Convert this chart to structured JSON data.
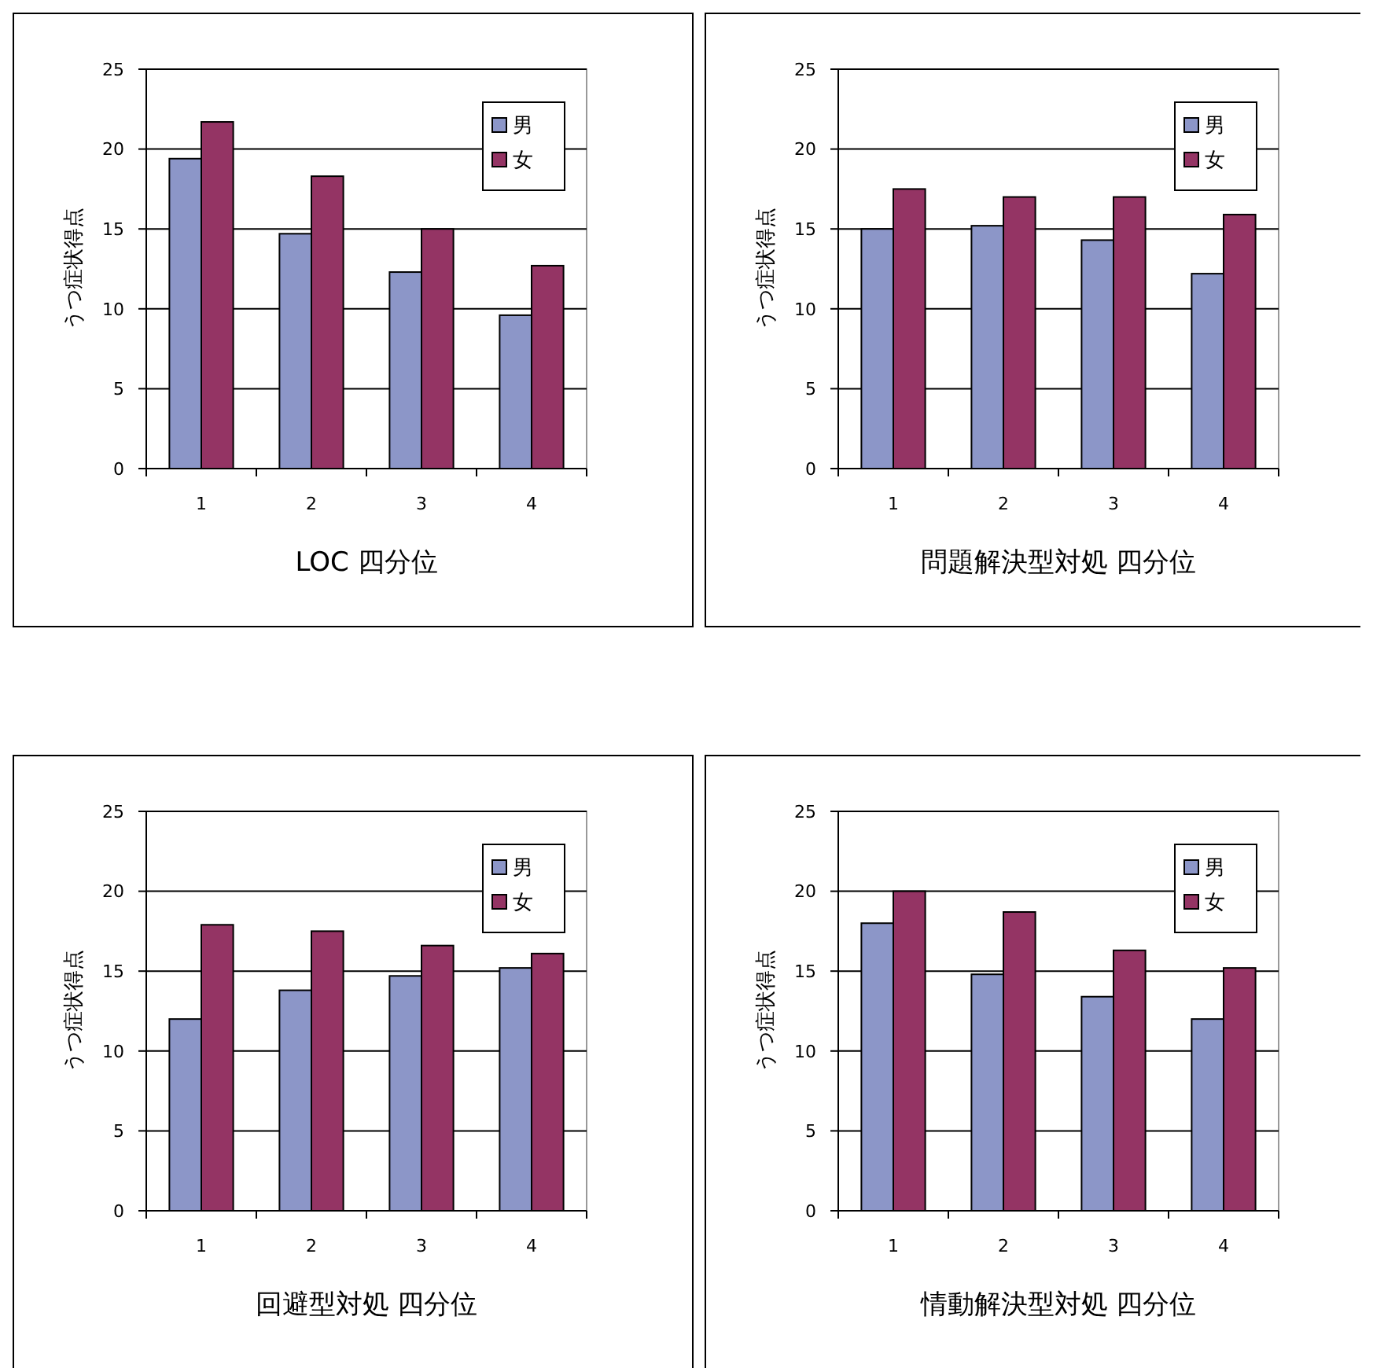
{
  "chart_data": [
    {
      "type": "bar",
      "xlabel": "LOC 四分位",
      "ylabel": "うつ症状得点",
      "categories": [
        "1",
        "2",
        "3",
        "4"
      ],
      "series": [
        {
          "name": "男",
          "color": "#8c96c8",
          "values": [
            19.4,
            14.7,
            12.3,
            9.6
          ]
        },
        {
          "name": "女",
          "color": "#943464",
          "values": [
            21.7,
            18.3,
            15.0,
            12.7
          ]
        }
      ],
      "ylim": [
        0,
        25
      ],
      "yticks": [
        0,
        5,
        10,
        15,
        20,
        25
      ],
      "grid": "y",
      "legend": "top right"
    },
    {
      "type": "bar",
      "xlabel": "問題解決型対処 四分位",
      "ylabel": "うつ症状得点",
      "categories": [
        "1",
        "2",
        "3",
        "4"
      ],
      "series": [
        {
          "name": "男",
          "color": "#8c96c8",
          "values": [
            15.0,
            15.2,
            14.3,
            12.2
          ]
        },
        {
          "name": "女",
          "color": "#943464",
          "values": [
            17.5,
            17.0,
            17.0,
            15.9
          ]
        }
      ],
      "ylim": [
        0,
        25
      ],
      "yticks": [
        0,
        5,
        10,
        15,
        20,
        25
      ],
      "grid": "y",
      "legend": "top right"
    },
    {
      "type": "bar",
      "xlabel": "回避型対処 四分位",
      "ylabel": "うつ症状得点",
      "categories": [
        "1",
        "2",
        "3",
        "4"
      ],
      "series": [
        {
          "name": "男",
          "color": "#8c96c8",
          "values": [
            12.0,
            13.8,
            14.7,
            15.2
          ]
        },
        {
          "name": "女",
          "color": "#943464",
          "values": [
            17.9,
            17.5,
            16.6,
            16.1
          ]
        }
      ],
      "ylim": [
        0,
        25
      ],
      "yticks": [
        0,
        5,
        10,
        15,
        20,
        25
      ],
      "grid": "y",
      "legend": "top right"
    },
    {
      "type": "bar",
      "xlabel": "情動解決型対処 四分位",
      "ylabel": "うつ症状得点",
      "categories": [
        "1",
        "2",
        "3",
        "4"
      ],
      "series": [
        {
          "name": "男",
          "color": "#8c96c8",
          "values": [
            18.0,
            14.8,
            13.4,
            12.0
          ]
        },
        {
          "name": "女",
          "color": "#943464",
          "values": [
            20.0,
            18.7,
            16.3,
            15.2
          ]
        }
      ],
      "ylim": [
        0,
        25
      ],
      "yticks": [
        0,
        5,
        10,
        15,
        20,
        25
      ],
      "grid": "y",
      "legend": "top right"
    }
  ]
}
